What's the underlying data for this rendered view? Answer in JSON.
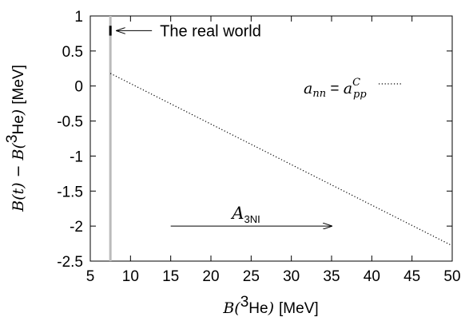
{
  "chart_data": {
    "type": "line",
    "xlabel": {
      "lead": "B(",
      "sup": "3",
      "text": "He",
      "close": ")",
      "unit": "[MeV]"
    },
    "ylabel": {
      "p1": "B(t) − B(",
      "sup": "3",
      "text": "He",
      "close": ")",
      "unit": "[MeV]"
    },
    "xlim": [
      5,
      50
    ],
    "ylim": [
      -2.5,
      1
    ],
    "xticks": [
      5,
      10,
      15,
      20,
      25,
      30,
      35,
      40,
      45,
      50
    ],
    "xtick_labels": [
      "5",
      "10",
      "15",
      "20",
      "25",
      "30",
      "35",
      "40",
      "45",
      "50"
    ],
    "yticks": [
      1,
      0.5,
      0,
      -0.5,
      -1,
      -1.5,
      -2,
      -2.5
    ],
    "ytick_labels": [
      "1",
      "0.5",
      "0",
      "-0.5",
      "-1",
      "-1.5",
      "-2",
      "-2.5"
    ],
    "grid": false,
    "series": [
      {
        "name": "a_nn = a^C_pp",
        "style": "dotted",
        "color": "#000000",
        "x": [
          7.5,
          50
        ],
        "y": [
          0.18,
          -2.28
        ]
      }
    ],
    "legend": {
      "placement": "top-right",
      "label": {
        "a": "a",
        "nn": "nn",
        "eq": " = ",
        "a2": "a",
        "sup": "C",
        "sub": "pp"
      }
    },
    "annotations": {
      "vertical_band": {
        "x": 7.5,
        "color": "#bbbbbb"
      },
      "real_world": {
        "text": "The real world",
        "x": 7.5,
        "y_range": [
          0.72,
          0.86
        ]
      },
      "arrow": {
        "from_x": 15,
        "to_x": 35,
        "y": -2.0
      },
      "a3ni": {
        "base": "A",
        "sub": "3NI"
      }
    }
  }
}
